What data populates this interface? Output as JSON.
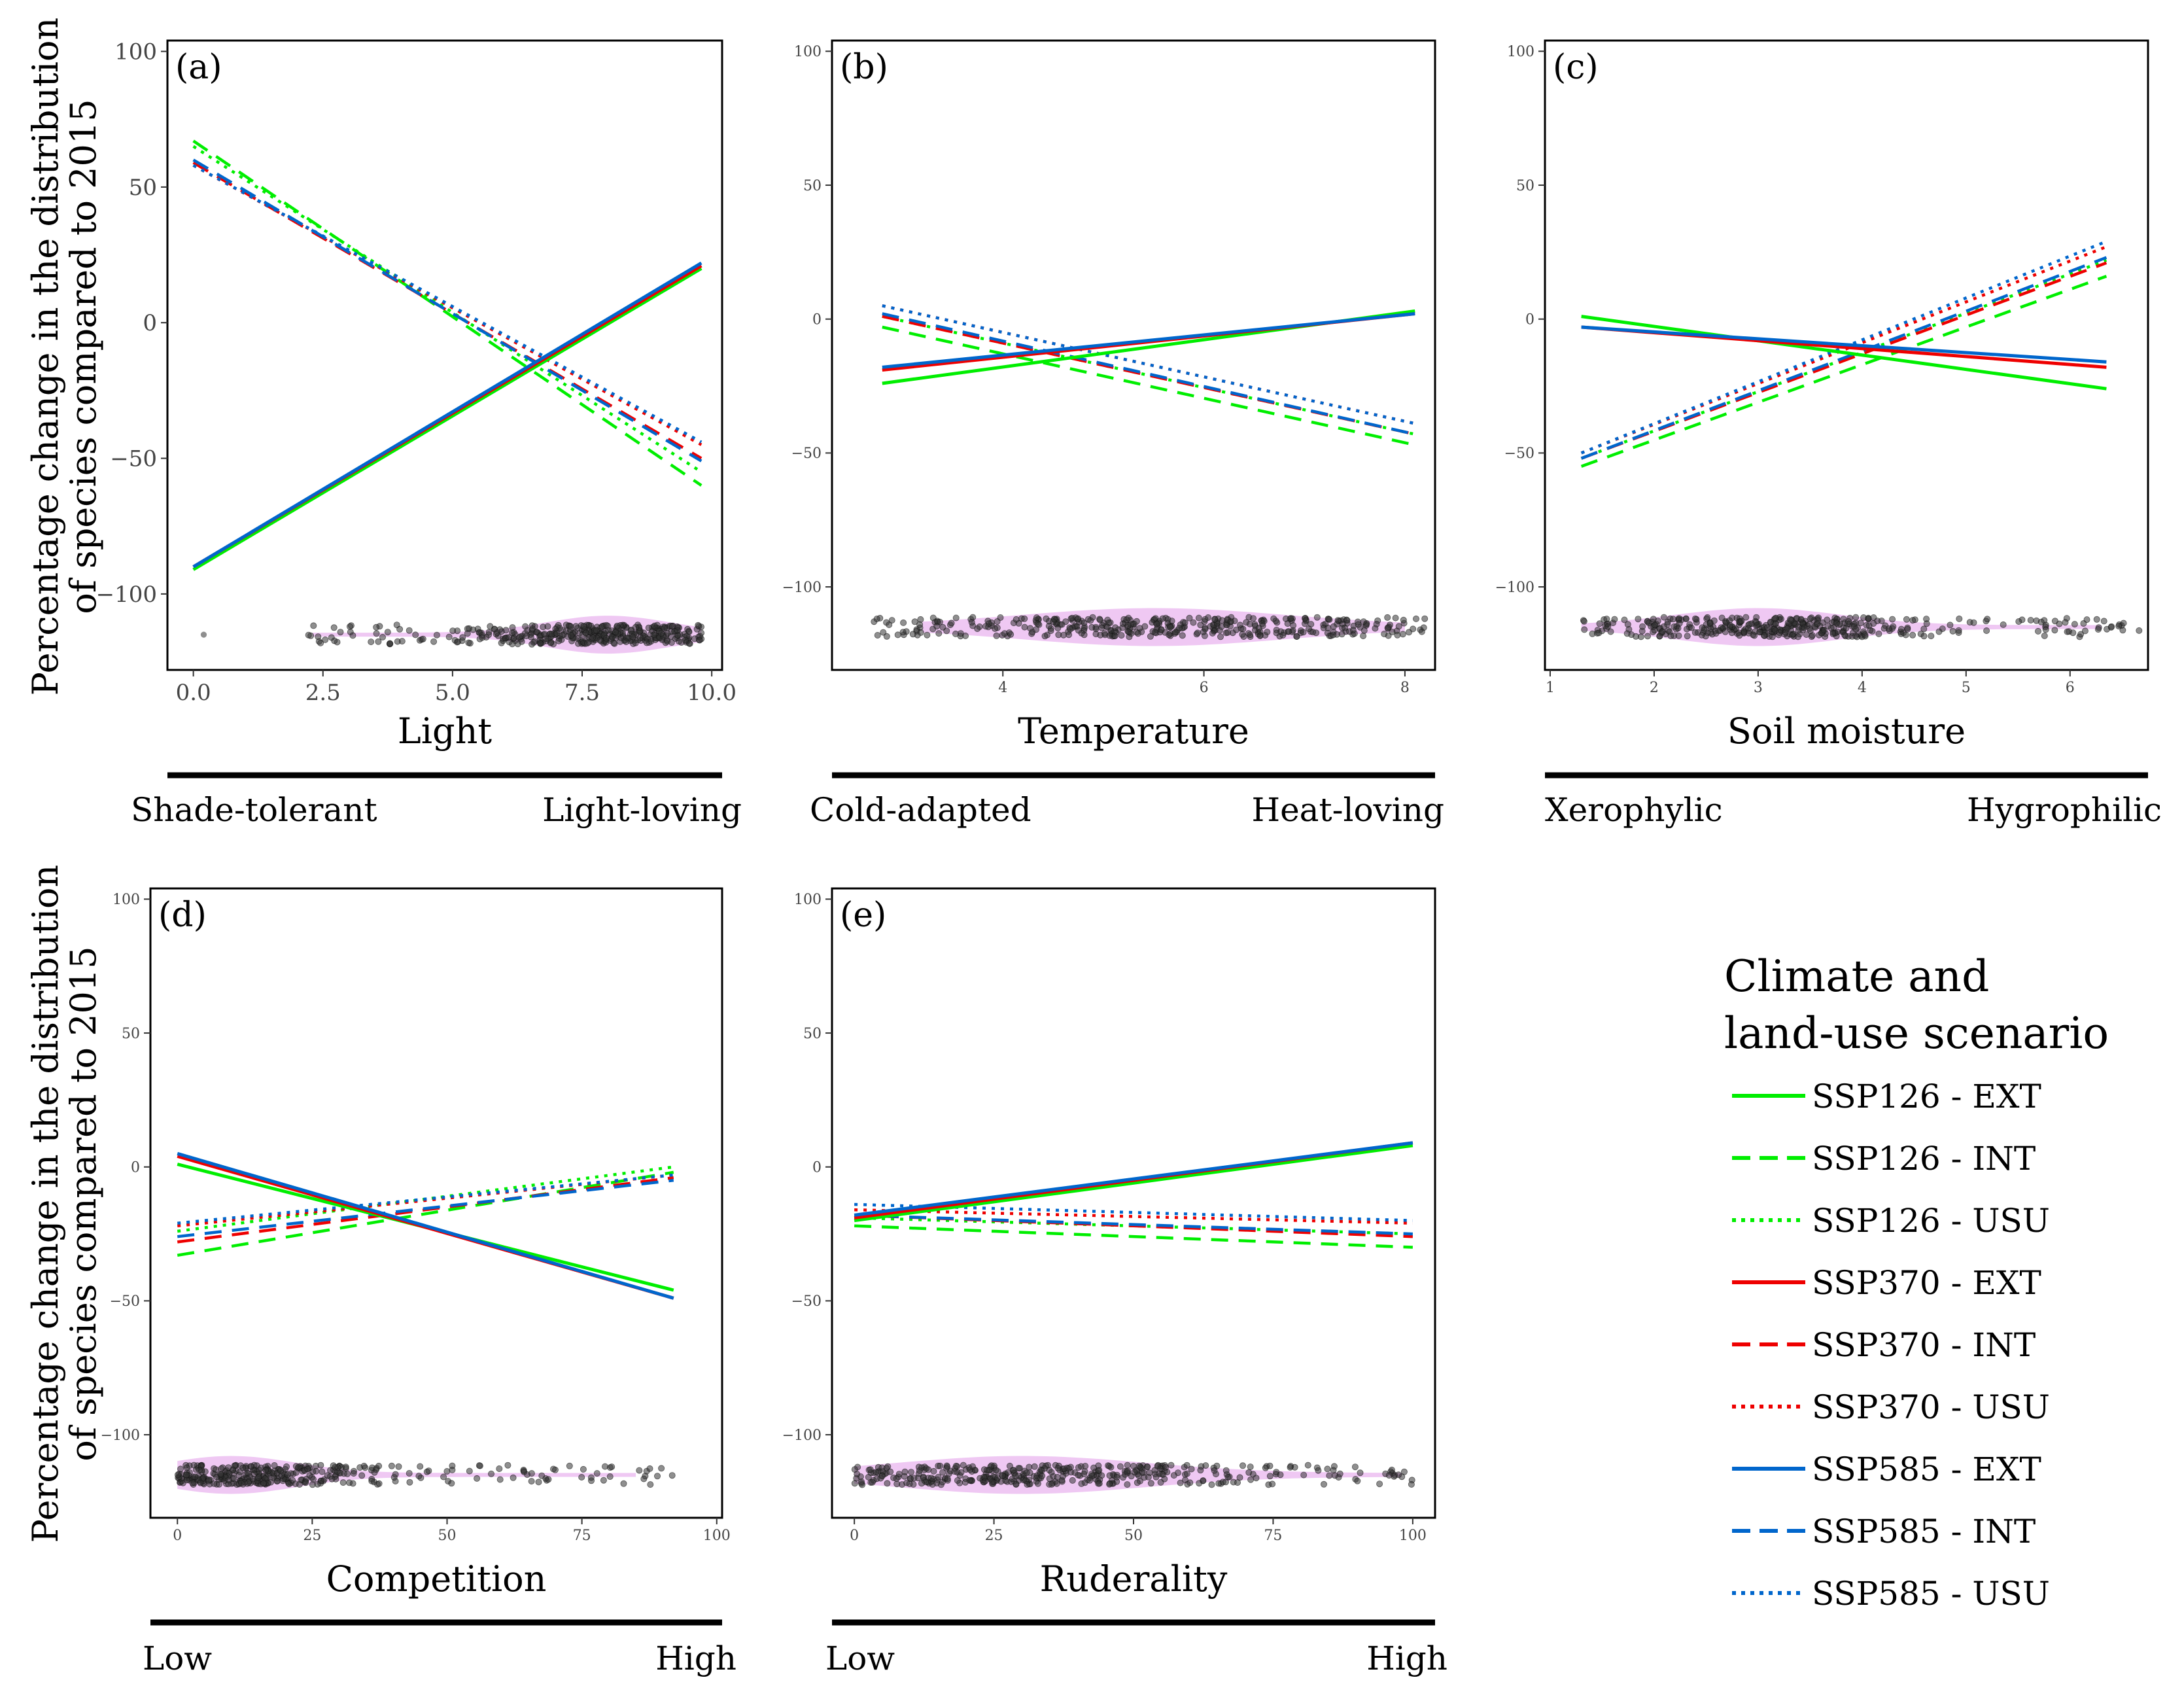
{
  "figure": {
    "y_label_line1": "Percentage change in the distribution",
    "y_label_line2": "of species compared to 2015",
    "legend_title_line1": "Climate and",
    "legend_title_line2": "land-use scenario"
  },
  "scenarios": [
    {
      "name": "SSP126 - EXT",
      "color": "#00ee00",
      "dash": "solid"
    },
    {
      "name": "SSP126 - INT",
      "color": "#00ee00",
      "dash": "dashed"
    },
    {
      "name": "SSP126 - USU",
      "color": "#00ee00",
      "dash": "dotted"
    },
    {
      "name": "SSP370 - EXT",
      "color": "#ee0000",
      "dash": "solid"
    },
    {
      "name": "SSP370 - INT",
      "color": "#ee0000",
      "dash": "dashed"
    },
    {
      "name": "SSP370 - USU",
      "color": "#ee0000",
      "dash": "dotted"
    },
    {
      "name": "SSP585 - EXT",
      "color": "#0066cc",
      "dash": "solid"
    },
    {
      "name": "SSP585 - INT",
      "color": "#0066cc",
      "dash": "dashed"
    },
    {
      "name": "SSP585 - USU",
      "color": "#0066cc",
      "dash": "dotted"
    }
  ],
  "chart_data": [
    {
      "type": "line",
      "panel": "(a)",
      "xlabel": "Light",
      "gradient_left": "Shade-tolerant",
      "gradient_right": "Light-loving",
      "xlim": [
        -0.5,
        10.2
      ],
      "ylim": [
        -128,
        104
      ],
      "xticks": [
        0.0,
        2.5,
        5.0,
        7.5,
        10.0
      ],
      "xtick_labels": [
        "0.0",
        "2.5",
        "5.0",
        "7.5",
        "10.0"
      ],
      "yticks": [
        -100,
        -50,
        0,
        50,
        100
      ],
      "ytick_labels": [
        "−100",
        "−50",
        "0",
        "50",
        "100"
      ],
      "x_range": [
        0,
        9.8
      ],
      "series": [
        {
          "name": "SSP126 - EXT",
          "y": [
            -91,
            20
          ]
        },
        {
          "name": "SSP126 - INT",
          "y": [
            67,
            -60
          ]
        },
        {
          "name": "SSP126 - USU",
          "y": [
            65,
            -55
          ]
        },
        {
          "name": "SSP370 - EXT",
          "y": [
            -90,
            21
          ]
        },
        {
          "name": "SSP370 - INT",
          "y": [
            59,
            -50
          ]
        },
        {
          "name": "SSP370 - USU",
          "y": [
            58,
            -45
          ]
        },
        {
          "name": "SSP585 - EXT",
          "y": [
            -90,
            22
          ]
        },
        {
          "name": "SSP585 - INT",
          "y": [
            60,
            -51
          ]
        },
        {
          "name": "SSP585 - USU",
          "y": [
            58,
            -44
          ]
        }
      ],
      "points": {
        "y": -115,
        "x_range": [
          2.2,
          9.8
        ],
        "density_center": 8.0,
        "density_spread": 1.2,
        "violin_range": [
          2.3,
          9.8
        ],
        "isolated_x": [
          0.2
        ]
      }
    },
    {
      "type": "line",
      "panel": "(b)",
      "xlabel": "Temperature",
      "gradient_left": "Cold-adapted",
      "gradient_right": "Heat-loving",
      "xlim": [
        2.3,
        8.3
      ],
      "ylim": [
        -131,
        104
      ],
      "xticks": [
        4,
        6,
        8
      ],
      "xtick_labels": [
        "4",
        "6",
        "8"
      ],
      "yticks": [
        -100,
        -50,
        0,
        50,
        100
      ],
      "ytick_labels": [
        "−100",
        "−50",
        "0",
        "50",
        "100"
      ],
      "x_range": [
        2.8,
        8.1
      ],
      "series": [
        {
          "name": "SSP126 - EXT",
          "y": [
            -24,
            3
          ]
        },
        {
          "name": "SSP126 - INT",
          "y": [
            -3,
            -47
          ]
        },
        {
          "name": "SSP126 - USU",
          "y": [
            1,
            -43
          ]
        },
        {
          "name": "SSP370 - EXT",
          "y": [
            -19,
            2
          ]
        },
        {
          "name": "SSP370 - INT",
          "y": [
            1,
            -43
          ]
        },
        {
          "name": "SSP370 - USU",
          "y": [
            5,
            -39
          ]
        },
        {
          "name": "SSP585 - EXT",
          "y": [
            -18,
            2
          ]
        },
        {
          "name": "SSP585 - INT",
          "y": [
            2,
            -43
          ]
        },
        {
          "name": "SSP585 - USU",
          "y": [
            5,
            -39
          ]
        }
      ],
      "points": {
        "y": -115,
        "x_range": [
          2.7,
          8.2
        ],
        "density_center": 5.5,
        "density_spread": 1.3,
        "violin_range": [
          3.2,
          8.0
        ],
        "isolated_x": []
      }
    },
    {
      "type": "line",
      "panel": "(c)",
      "xlabel": "Soil moisture",
      "gradient_left": "Xerophylic",
      "gradient_right": "Hygrophilic",
      "xlim": [
        0.95,
        6.75
      ],
      "ylim": [
        -131,
        104
      ],
      "xticks": [
        1,
        2,
        3,
        4,
        5,
        6
      ],
      "xtick_labels": [
        "1",
        "2",
        "3",
        "4",
        "5",
        "6"
      ],
      "yticks": [
        -100,
        -50,
        0,
        50,
        100
      ],
      "ytick_labels": [
        "−100",
        "−50",
        "0",
        "50",
        "100"
      ],
      "x_range": [
        1.3,
        6.35
      ],
      "series": [
        {
          "name": "SSP126 - EXT",
          "y": [
            1,
            -26
          ]
        },
        {
          "name": "SSP126 - INT",
          "y": [
            -55,
            16
          ]
        },
        {
          "name": "SSP126 - USU",
          "y": [
            -52,
            22
          ]
        },
        {
          "name": "SSP370 - EXT",
          "y": [
            -3,
            -18
          ]
        },
        {
          "name": "SSP370 - INT",
          "y": [
            -52,
            21
          ]
        },
        {
          "name": "SSP370 - USU",
          "y": [
            -50,
            27
          ]
        },
        {
          "name": "SSP585 - EXT",
          "y": [
            -3,
            -16
          ]
        },
        {
          "name": "SSP585 - INT",
          "y": [
            -52,
            23
          ]
        },
        {
          "name": "SSP585 - USU",
          "y": [
            -50,
            29
          ]
        }
      ],
      "points": {
        "y": -115,
        "x_range": [
          1.3,
          6.7
        ],
        "density_center": 3.0,
        "density_spread": 0.8,
        "violin_range": [
          1.3,
          6.3
        ],
        "isolated_x": []
      }
    },
    {
      "type": "line",
      "panel": "(d)",
      "xlabel": "Competition",
      "gradient_left": "Low",
      "gradient_right": "High",
      "xlim": [
        -5,
        101
      ],
      "ylim": [
        -131,
        104
      ],
      "xticks": [
        0,
        25,
        50,
        75,
        100
      ],
      "xtick_labels": [
        "0",
        "25",
        "50",
        "75",
        "100"
      ],
      "yticks": [
        -100,
        -50,
        0,
        50,
        100
      ],
      "ytick_labels": [
        "−100",
        "−50",
        "0",
        "50",
        "100"
      ],
      "x_range": [
        0,
        92
      ],
      "series": [
        {
          "name": "SSP126 - EXT",
          "y": [
            1,
            -46
          ]
        },
        {
          "name": "SSP126 - INT",
          "y": [
            -33,
            -2
          ]
        },
        {
          "name": "SSP126 - USU",
          "y": [
            -24,
            0
          ]
        },
        {
          "name": "SSP370 - EXT",
          "y": [
            4,
            -49
          ]
        },
        {
          "name": "SSP370 - INT",
          "y": [
            -28,
            -4
          ]
        },
        {
          "name": "SSP370 - USU",
          "y": [
            -22,
            -3
          ]
        },
        {
          "name": "SSP585 - EXT",
          "y": [
            5,
            -49
          ]
        },
        {
          "name": "SSP585 - INT",
          "y": [
            -26,
            -5
          ]
        },
        {
          "name": "SSP585 - USU",
          "y": [
            -21,
            -3
          ]
        }
      ],
      "points": {
        "y": -115,
        "x_range": [
          0,
          92
        ],
        "density_center": 10,
        "density_spread": 12,
        "violin_range": [
          0,
          85
        ],
        "isolated_x": []
      }
    },
    {
      "type": "line",
      "panel": "(e)",
      "xlabel": "Ruderality",
      "gradient_left": "Low",
      "gradient_right": "High",
      "xlim": [
        -4,
        104
      ],
      "ylim": [
        -131,
        104
      ],
      "xticks": [
        0,
        25,
        50,
        75,
        100
      ],
      "xtick_labels": [
        "0",
        "25",
        "50",
        "75",
        "100"
      ],
      "yticks": [
        -100,
        -50,
        0,
        50,
        100
      ],
      "ytick_labels": [
        "−100",
        "−50",
        "0",
        "50",
        "100"
      ],
      "x_range": [
        0,
        100
      ],
      "series": [
        {
          "name": "SSP126 - EXT",
          "y": [
            -20,
            8
          ]
        },
        {
          "name": "SSP126 - INT",
          "y": [
            -22,
            -30
          ]
        },
        {
          "name": "SSP126 - USU",
          "y": [
            -19,
            -25
          ]
        },
        {
          "name": "SSP370 - EXT",
          "y": [
            -19,
            9
          ]
        },
        {
          "name": "SSP370 - INT",
          "y": [
            -18,
            -26
          ]
        },
        {
          "name": "SSP370 - USU",
          "y": [
            -16,
            -21
          ]
        },
        {
          "name": "SSP585 - EXT",
          "y": [
            -18,
            9
          ]
        },
        {
          "name": "SSP585 - INT",
          "y": [
            -18,
            -25
          ]
        },
        {
          "name": "SSP585 - USU",
          "y": [
            -14,
            -20
          ]
        }
      ],
      "points": {
        "y": -115,
        "x_range": [
          0,
          100
        ],
        "density_center": 30,
        "density_spread": 22,
        "violin_range": [
          0,
          98
        ],
        "isolated_x": []
      }
    }
  ]
}
